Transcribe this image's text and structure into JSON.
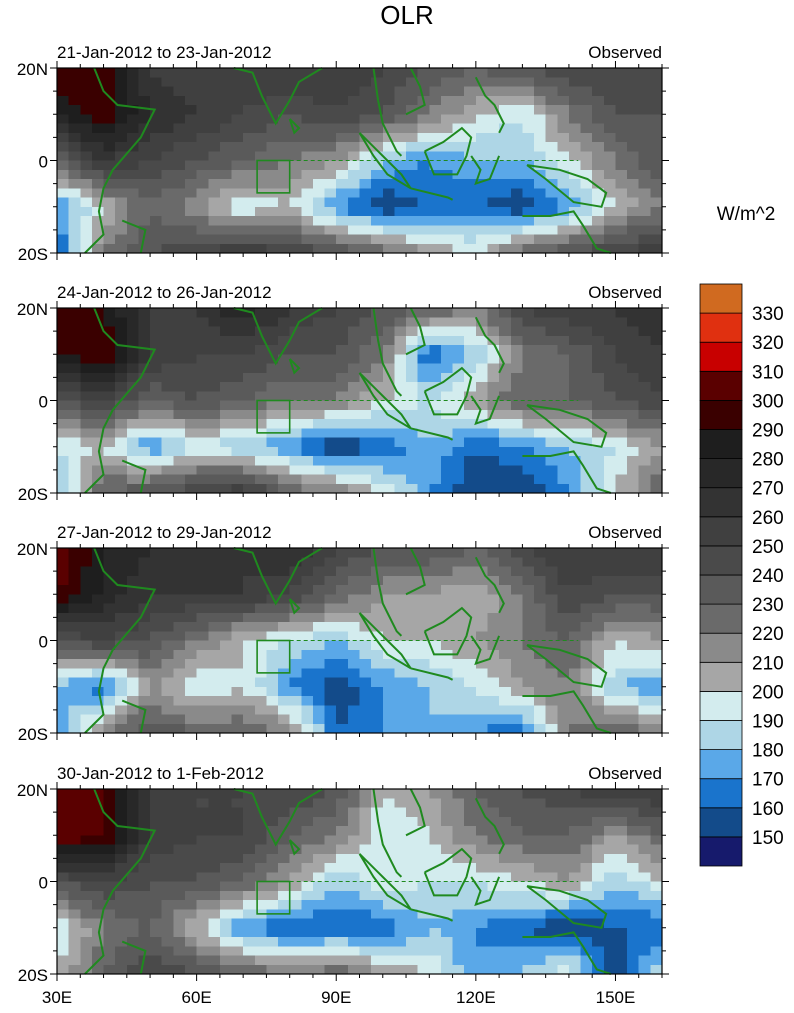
{
  "chart_data": {
    "type": "heatmap",
    "title": "OLR",
    "units_label": "W/m^2",
    "lon": [
      30,
      40,
      50,
      60,
      70,
      80,
      90,
      100,
      110,
      120,
      130,
      140,
      150,
      160
    ],
    "lat": [
      20,
      10,
      0,
      -10,
      -20
    ],
    "x_ticks": [
      "30E",
      "60E",
      "90E",
      "120E",
      "150E"
    ],
    "x_tick_values": [
      30,
      60,
      90,
      120,
      150
    ],
    "y_ticks": [
      "20N",
      "0",
      "20S"
    ],
    "y_tick_values": [
      20,
      0,
      -20
    ],
    "levels": [
      150,
      160,
      170,
      180,
      190,
      200,
      210,
      220,
      230,
      240,
      250,
      260,
      270,
      280,
      290,
      300,
      310,
      320,
      330
    ],
    "colors": [
      "#161a6c",
      "#134b8a",
      "#1a74cc",
      "#5aa8e8",
      "#aed6e6",
      "#d3ecee",
      "#a6a6a6",
      "#8a8a8a",
      "#6a6a6a",
      "#5a5a5a",
      "#4a4a4a",
      "#404040",
      "#333333",
      "#282828",
      "#1e1e1e",
      "#3a0000",
      "#5a0000",
      "#c80000",
      "#e03010",
      "#d06a20"
    ],
    "panels": [
      {
        "left_label": "21-Jan-2012 to 23-Jan-2012",
        "right_label": "Observed",
        "values": [
          [
            300,
            300,
            260,
            250,
            260,
            260,
            260,
            250,
            240,
            230,
            240,
            250,
            250,
            250
          ],
          [
            280,
            300,
            270,
            260,
            250,
            240,
            250,
            240,
            220,
            200,
            190,
            220,
            240,
            240
          ],
          [
            230,
            260,
            250,
            240,
            230,
            220,
            210,
            180,
            170,
            180,
            180,
            200,
            220,
            240
          ],
          [
            170,
            200,
            230,
            210,
            190,
            200,
            170,
            150,
            160,
            160,
            150,
            170,
            200,
            220
          ],
          [
            160,
            220,
            240,
            250,
            260,
            250,
            240,
            230,
            210,
            200,
            230,
            240,
            250,
            260
          ]
        ]
      },
      {
        "left_label": "24-Jan-2012 to 26-Jan-2012",
        "right_label": "Observed",
        "values": [
          [
            300,
            290,
            260,
            260,
            280,
            260,
            250,
            240,
            230,
            220,
            250,
            260,
            260,
            270
          ],
          [
            290,
            300,
            260,
            250,
            250,
            240,
            240,
            220,
            160,
            180,
            220,
            230,
            250,
            260
          ],
          [
            240,
            250,
            230,
            240,
            230,
            220,
            220,
            200,
            190,
            210,
            230,
            230,
            240,
            250
          ],
          [
            190,
            200,
            170,
            190,
            180,
            170,
            150,
            160,
            180,
            160,
            170,
            180,
            190,
            210
          ],
          [
            180,
            230,
            240,
            250,
            260,
            230,
            220,
            200,
            170,
            150,
            150,
            170,
            200,
            230
          ]
        ]
      },
      {
        "left_label": "27-Jan-2012 to 29-Jan-2012",
        "right_label": "Observed",
        "values": [
          [
            310,
            280,
            270,
            260,
            260,
            270,
            250,
            240,
            240,
            230,
            250,
            260,
            260,
            260
          ],
          [
            300,
            280,
            260,
            260,
            260,
            250,
            230,
            210,
            210,
            200,
            220,
            250,
            240,
            240
          ],
          [
            240,
            250,
            240,
            220,
            200,
            190,
            180,
            200,
            200,
            210,
            220,
            230,
            200,
            210
          ],
          [
            180,
            160,
            210,
            190,
            200,
            170,
            150,
            170,
            180,
            190,
            210,
            220,
            180,
            170
          ],
          [
            170,
            220,
            240,
            230,
            230,
            220,
            160,
            170,
            180,
            170,
            160,
            220,
            230,
            220
          ]
        ]
      },
      {
        "left_label": "30-Jan-2012 to 1-Feb-2012",
        "right_label": "Observed",
        "values": [
          [
            310,
            300,
            260,
            250,
            250,
            250,
            240,
            200,
            210,
            230,
            240,
            250,
            260,
            260
          ],
          [
            310,
            300,
            260,
            250,
            250,
            230,
            220,
            190,
            200,
            220,
            230,
            230,
            210,
            230
          ],
          [
            240,
            250,
            240,
            240,
            230,
            210,
            180,
            200,
            190,
            190,
            200,
            210,
            180,
            200
          ],
          [
            190,
            220,
            230,
            200,
            170,
            160,
            160,
            160,
            180,
            170,
            160,
            150,
            160,
            160
          ],
          [
            200,
            230,
            250,
            240,
            230,
            220,
            230,
            210,
            200,
            170,
            180,
            200,
            150,
            190
          ]
        ]
      }
    ]
  }
}
